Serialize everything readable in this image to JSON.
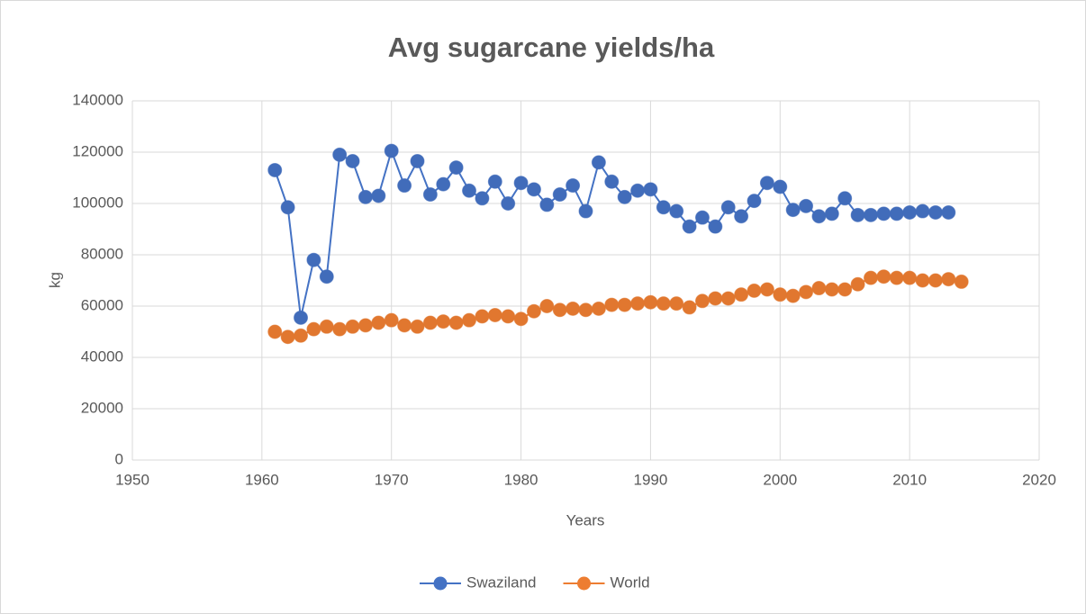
{
  "chart_data": {
    "type": "line",
    "title": "Avg sugarcane yields/ha",
    "xlabel": "Years",
    "ylabel": "kg",
    "x": [
      1961,
      1962,
      1963,
      1964,
      1965,
      1966,
      1967,
      1968,
      1969,
      1970,
      1971,
      1972,
      1973,
      1974,
      1975,
      1976,
      1977,
      1978,
      1979,
      1980,
      1981,
      1982,
      1983,
      1984,
      1985,
      1986,
      1987,
      1988,
      1989,
      1990,
      1991,
      1992,
      1993,
      1994,
      1995,
      1996,
      1997,
      1998,
      1999,
      2000,
      2001,
      2002,
      2003,
      2004,
      2005,
      2006,
      2007,
      2008,
      2009,
      2010,
      2011,
      2012,
      2013,
      2014
    ],
    "series": [
      {
        "name": "Swaziland",
        "color": "#4472c4",
        "values": [
          113000,
          98500,
          55500,
          78000,
          71500,
          119000,
          116500,
          102500,
          103000,
          120500,
          107000,
          116500,
          103500,
          107500,
          114000,
          105000,
          102000,
          108500,
          100000,
          108000,
          105500,
          99500,
          103500,
          107000,
          97000,
          116000,
          108500,
          102500,
          105000,
          105500,
          98500,
          97000,
          91000,
          94500,
          91000,
          98500,
          95000,
          101000,
          108000,
          106500,
          97500,
          99000,
          95000,
          96000,
          102000,
          95500,
          95500,
          96000,
          96000,
          96500,
          97000,
          96500,
          96500,
          null
        ]
      },
      {
        "name": "World",
        "color": "#ed7d31",
        "values": [
          50000,
          48000,
          48500,
          51000,
          52000,
          51000,
          52000,
          52500,
          53500,
          54500,
          52500,
          52000,
          53500,
          54000,
          53500,
          54500,
          56000,
          56500,
          56000,
          55000,
          58000,
          60000,
          58500,
          59000,
          58500,
          59000,
          60500,
          60500,
          61000,
          61500,
          61000,
          61000,
          59500,
          62000,
          63000,
          63000,
          64500,
          66000,
          66500,
          64500,
          64000,
          65500,
          67000,
          66500,
          66500,
          68500,
          71000,
          71500,
          71000,
          71000,
          70000,
          70000,
          70500,
          69500
        ]
      }
    ],
    "xlim": [
      1950,
      2020
    ],
    "xticks": [
      1950,
      1960,
      1970,
      1980,
      1990,
      2000,
      2010,
      2020
    ],
    "ylim": [
      0,
      140000
    ],
    "yticks": [
      0,
      20000,
      40000,
      60000,
      80000,
      100000,
      120000,
      140000
    ],
    "grid": true,
    "legend": "bottom"
  }
}
